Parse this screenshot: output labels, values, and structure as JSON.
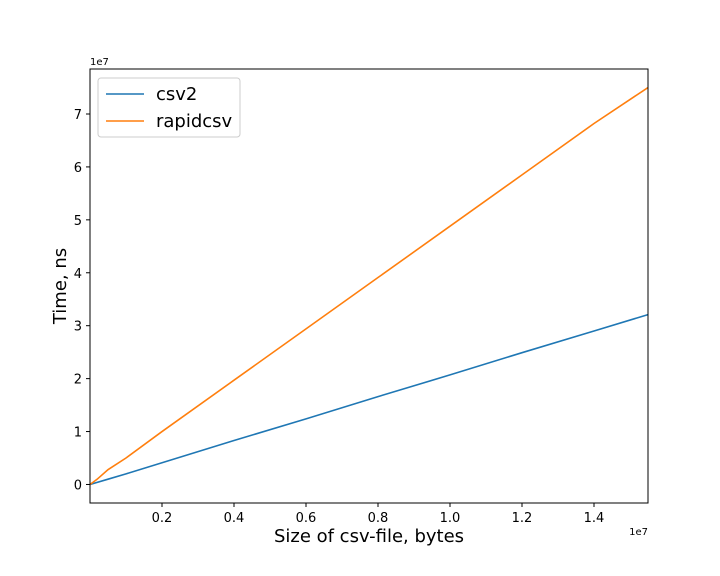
{
  "chart_data": {
    "type": "line",
    "title": "",
    "xlabel": "Size of csv-file, bytes",
    "ylabel": "Time, ns",
    "x_offset_label": "1e7",
    "y_offset_label": "1e7",
    "xlim": [
      0,
      1.55
    ],
    "ylim": [
      -0.35,
      7.85
    ],
    "x_ticks": [
      0.2,
      0.4,
      0.6,
      0.8,
      1.0,
      1.2,
      1.4
    ],
    "x_tick_labels": [
      "0.2",
      "0.4",
      "0.6",
      "0.8",
      "1.0",
      "1.2",
      "1.4"
    ],
    "y_ticks": [
      0,
      1,
      2,
      3,
      4,
      5,
      6,
      7
    ],
    "y_tick_labels": [
      "0",
      "1",
      "2",
      "3",
      "4",
      "5",
      "6",
      "7"
    ],
    "grid": false,
    "legend_position": "top-left",
    "series": [
      {
        "name": "csv2",
        "color": "#1f77b4",
        "x": [
          0,
          0.05,
          0.1,
          0.2,
          0.4,
          0.6,
          0.8,
          1.0,
          1.2,
          1.4,
          1.55
        ],
        "y": [
          0,
          0.1,
          0.2,
          0.41,
          0.83,
          1.24,
          1.66,
          2.07,
          2.49,
          2.9,
          3.21
        ]
      },
      {
        "name": "rapidcsv",
        "color": "#ff7f0e",
        "x": [
          0,
          0.02,
          0.05,
          0.1,
          0.2,
          0.4,
          0.6,
          0.8,
          1.0,
          1.2,
          1.4,
          1.55
        ],
        "y": [
          0,
          0.1,
          0.28,
          0.5,
          1.0,
          1.97,
          2.94,
          3.91,
          4.88,
          5.85,
          6.82,
          7.5
        ]
      }
    ]
  }
}
